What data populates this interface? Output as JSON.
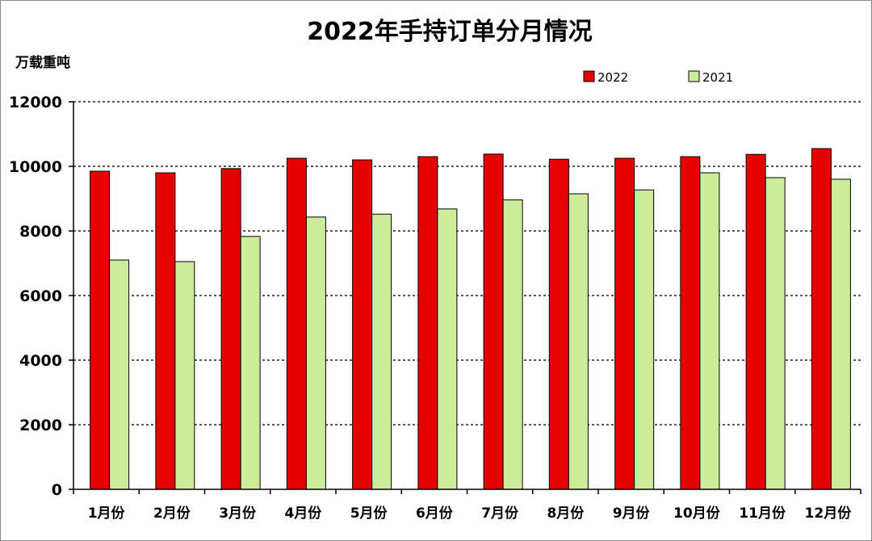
{
  "chart_data": {
    "type": "bar",
    "title": "2022年手持订单分月情况",
    "ylabel": "万载重吨",
    "xlabel": "",
    "ylim": [
      0,
      12000
    ],
    "yticks": [
      0,
      2000,
      4000,
      6000,
      8000,
      10000,
      12000
    ],
    "grid": true,
    "legend_position": "top-right",
    "categories": [
      "1月份",
      "2月份",
      "3月份",
      "4月份",
      "5月份",
      "6月份",
      "7月份",
      "8月份",
      "9月份",
      "10月份",
      "11月份",
      "12月份"
    ],
    "series": [
      {
        "name": "2022",
        "color": "#e60000",
        "values": [
          9850,
          9800,
          9930,
          10250,
          10200,
          10300,
          10380,
          10220,
          10250,
          10300,
          10370,
          10550
        ]
      },
      {
        "name": "2021",
        "color": "#ccec9b",
        "values": [
          7100,
          7050,
          7830,
          8430,
          8520,
          8680,
          8960,
          9150,
          9270,
          9800,
          9650,
          9600
        ]
      }
    ]
  }
}
